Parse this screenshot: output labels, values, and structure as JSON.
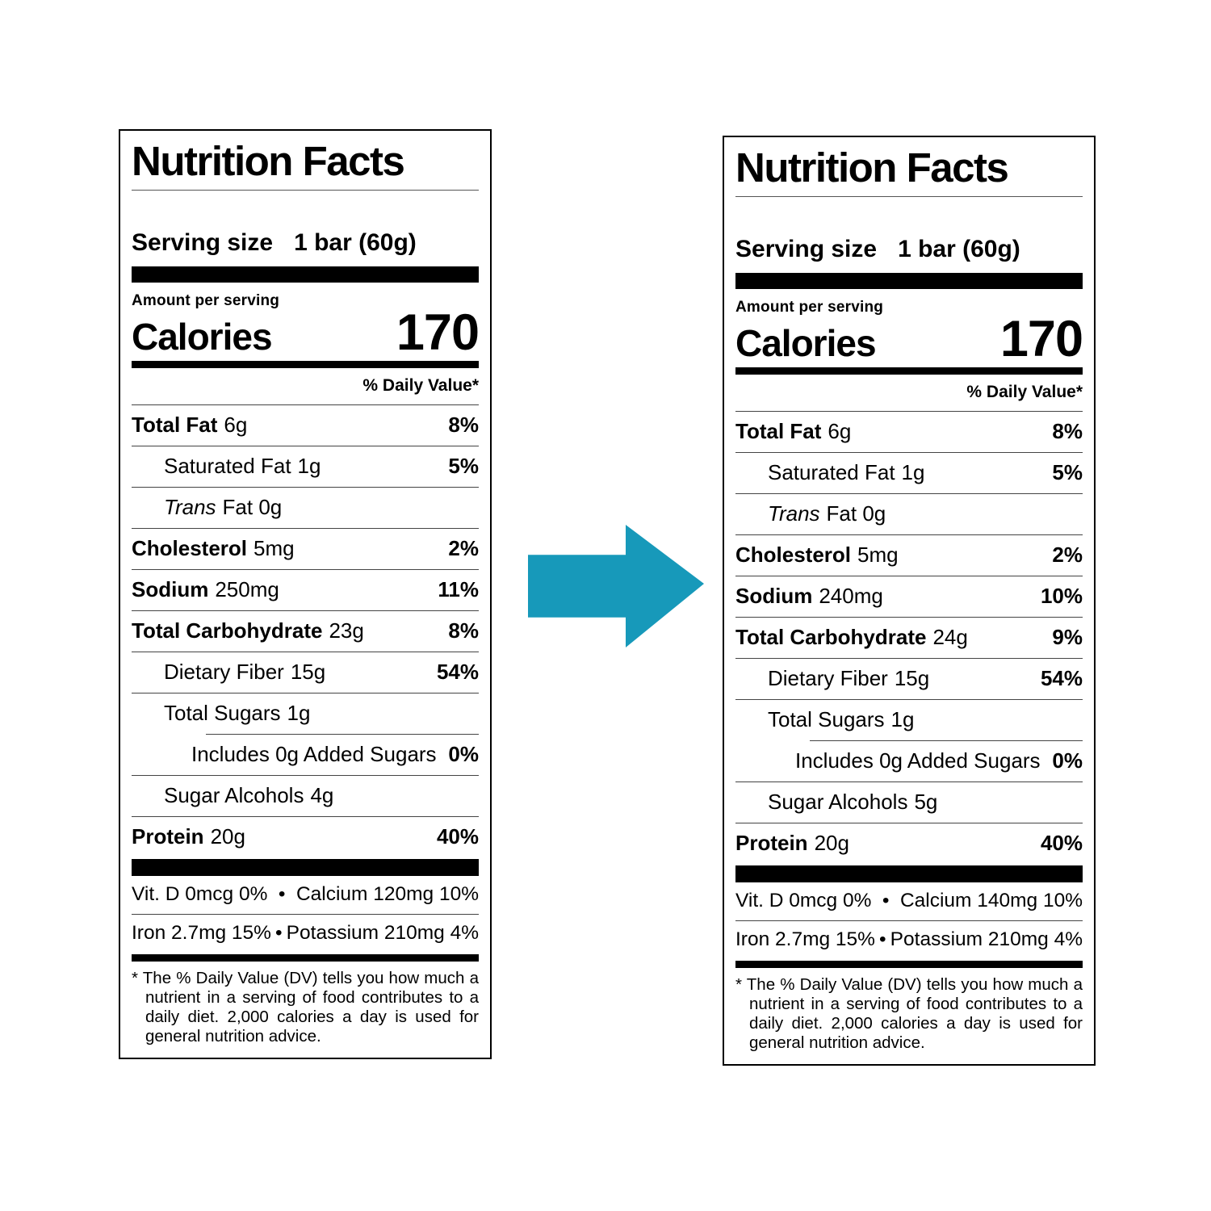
{
  "arrow": {
    "direction": "right",
    "color": "#1799BA"
  },
  "bullet": "•",
  "labels": [
    {
      "id": "before",
      "title": "Nutrition Facts",
      "serving_label": "Serving size",
      "serving_value": "1 bar (60g)",
      "amount_per_serving": "Amount per serving",
      "calories_label": "Calories",
      "calories_value": "170",
      "dv_header": "% Daily Value*",
      "rows": [
        {
          "name": "Total Fat",
          "amount": "6g",
          "pct": "8%",
          "bold": true,
          "indent": 0
        },
        {
          "name": "Saturated Fat",
          "amount": "1g",
          "pct": "5%",
          "bold": false,
          "indent": 1
        },
        {
          "name": "Trans",
          "amount": "Fat 0g",
          "pct": "",
          "bold": false,
          "italic": true,
          "indent": 1
        },
        {
          "name": "Cholesterol",
          "amount": "5mg",
          "pct": "2%",
          "bold": true,
          "indent": 0
        },
        {
          "name": "Sodium",
          "amount": "250mg",
          "pct": "11%",
          "bold": true,
          "indent": 0
        },
        {
          "name": "Total Carbohydrate",
          "amount": "23g",
          "pct": "8%",
          "bold": true,
          "indent": 0
        },
        {
          "name": "Dietary Fiber",
          "amount": "15g",
          "pct": "54%",
          "bold": false,
          "indent": 1
        },
        {
          "name": "Total Sugars",
          "amount": "1g",
          "pct": "",
          "bold": false,
          "indent": 1,
          "sep_indent": true
        },
        {
          "name": "Includes 0g Added Sugars",
          "amount": "",
          "pct": "0%",
          "bold": false,
          "indent": 2
        },
        {
          "name": "Sugar Alcohols",
          "amount": "4g",
          "pct": "",
          "bold": false,
          "indent": 1
        },
        {
          "name": "Protein",
          "amount": "20g",
          "pct": "40%",
          "bold": true,
          "indent": 0
        }
      ],
      "vitamins": [
        {
          "left": "Vit. D 0mcg 0%",
          "right": "Calcium 120mg 10%"
        },
        {
          "left": "Iron 2.7mg 15%",
          "right": "Potassium 210mg 4%"
        }
      ],
      "footnote": "* The % Daily Value (DV) tells you how much a nutrient in a serving of food contributes to a daily diet. 2,000 calories a day is used for general nutrition advice."
    },
    {
      "id": "after",
      "title": "Nutrition Facts",
      "serving_label": "Serving size",
      "serving_value": "1 bar (60g)",
      "amount_per_serving": "Amount per serving",
      "calories_label": "Calories",
      "calories_value": "170",
      "dv_header": "% Daily Value*",
      "rows": [
        {
          "name": "Total Fat",
          "amount": "6g",
          "pct": "8%",
          "bold": true,
          "indent": 0
        },
        {
          "name": "Saturated Fat",
          "amount": "1g",
          "pct": "5%",
          "bold": false,
          "indent": 1
        },
        {
          "name": "Trans",
          "amount": "Fat 0g",
          "pct": "",
          "bold": false,
          "italic": true,
          "indent": 1
        },
        {
          "name": "Cholesterol",
          "amount": "5mg",
          "pct": "2%",
          "bold": true,
          "indent": 0
        },
        {
          "name": "Sodium",
          "amount": "240mg",
          "pct": "10%",
          "bold": true,
          "indent": 0
        },
        {
          "name": "Total Carbohydrate",
          "amount": "24g",
          "pct": "9%",
          "bold": true,
          "indent": 0
        },
        {
          "name": "Dietary Fiber",
          "amount": "15g",
          "pct": "54%",
          "bold": false,
          "indent": 1
        },
        {
          "name": "Total Sugars",
          "amount": "1g",
          "pct": "",
          "bold": false,
          "indent": 1,
          "sep_indent": true
        },
        {
          "name": "Includes 0g Added Sugars",
          "amount": "",
          "pct": "0%",
          "bold": false,
          "indent": 2
        },
        {
          "name": "Sugar Alcohols",
          "amount": "5g",
          "pct": "",
          "bold": false,
          "indent": 1
        },
        {
          "name": "Protein",
          "amount": "20g",
          "pct": "40%",
          "bold": true,
          "indent": 0
        }
      ],
      "vitamins": [
        {
          "left": "Vit. D 0mcg 0%",
          "right": "Calcium 140mg 10%"
        },
        {
          "left": "Iron 2.7mg 15%",
          "right": "Potassium 210mg 4%"
        }
      ],
      "footnote": "* The % Daily Value (DV) tells you how much a nutrient in a serving of food contributes to a daily diet. 2,000 calories a day is used for general nutrition advice."
    }
  ]
}
